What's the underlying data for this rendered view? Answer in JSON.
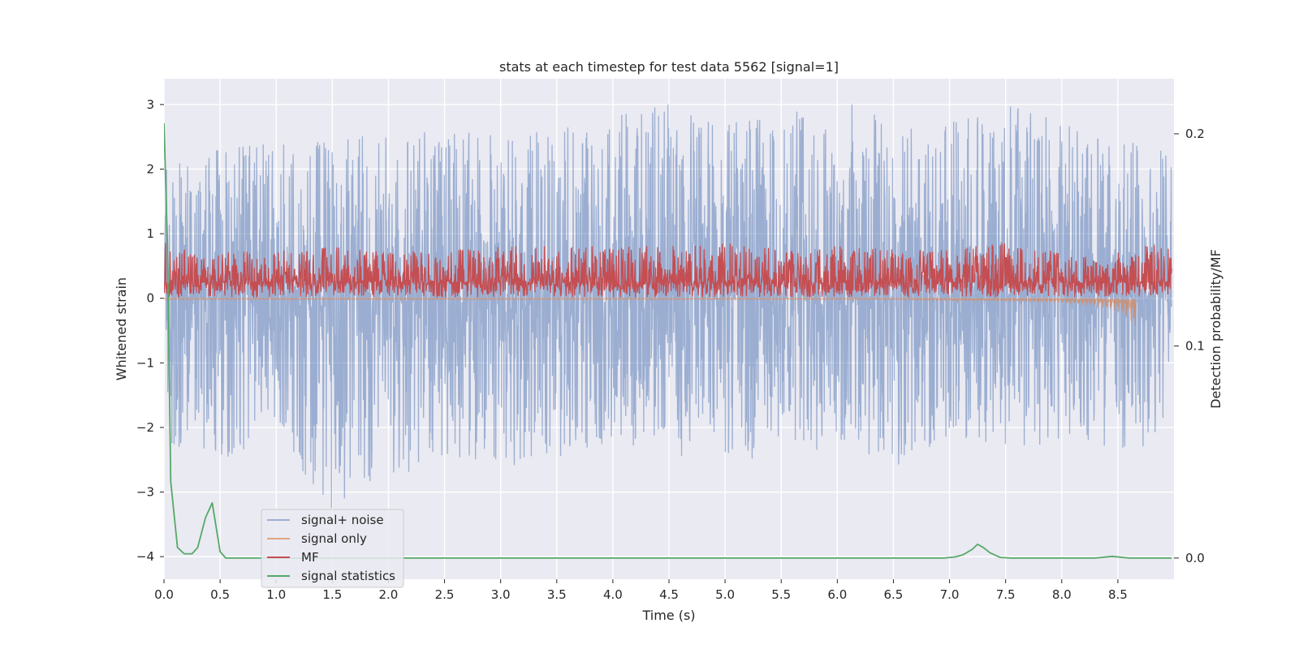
{
  "chart_data": {
    "type": "line",
    "title": "stats at each timestep for test data 5562 [signal=1]",
    "xlabel": "Time (s)",
    "ylabel": "Whitened strain",
    "y2label": "Detection probability/MF",
    "xlim": [
      0.0,
      9.0
    ],
    "ylim": [
      -4.35,
      3.4
    ],
    "y2lim": [
      -0.01,
      0.226
    ],
    "xticks": [
      0.0,
      0.5,
      1.0,
      1.5,
      2.0,
      2.5,
      3.0,
      3.5,
      4.0,
      4.5,
      5.0,
      5.5,
      6.0,
      6.5,
      7.0,
      7.5,
      8.0,
      8.5
    ],
    "xtick_labels": [
      "0.0",
      "0.5",
      "1.0",
      "1.5",
      "2.0",
      "2.5",
      "3.0",
      "3.5",
      "4.0",
      "4.5",
      "5.0",
      "5.5",
      "6.0",
      "6.5",
      "7.0",
      "7.5",
      "8.0",
      "8.5"
    ],
    "yticks": [
      -4,
      -3,
      -2,
      -1,
      0,
      1,
      2,
      3
    ],
    "ytick_labels": [
      "−4",
      "−3",
      "−2",
      "−1",
      "0",
      "1",
      "2",
      "3"
    ],
    "y2ticks": [
      0.0,
      0.1,
      0.2
    ],
    "y2tick_labels": [
      "0.0",
      "0.1",
      "0.2"
    ],
    "grid": true,
    "legend_position": "lower-left",
    "series": [
      {
        "name": "signal+ noise",
        "color": "#4c72b0",
        "kind": "noise-band",
        "axis": "left",
        "envelope_x": [
          0.0,
          0.5,
          1.0,
          1.5,
          2.0,
          2.5,
          3.0,
          3.5,
          4.0,
          4.5,
          5.0,
          5.5,
          6.0,
          6.5,
          7.0,
          7.5,
          8.0,
          8.5,
          8.98
        ],
        "envelope_max": [
          2.0,
          2.3,
          2.4,
          2.5,
          2.5,
          2.6,
          2.5,
          2.6,
          2.8,
          3.0,
          2.7,
          2.8,
          3.1,
          2.7,
          2.7,
          3.05,
          2.7,
          2.5,
          2.3
        ],
        "envelope_min": [
          -2.4,
          -2.5,
          -2.1,
          -3.3,
          -2.9,
          -2.4,
          -2.6,
          -2.5,
          -2.2,
          -2.4,
          -2.55,
          -2.4,
          -2.3,
          -2.65,
          -2.1,
          -2.3,
          -2.3,
          -2.3,
          -2.4
        ],
        "center": 0.0
      },
      {
        "name": "signal only",
        "color": "#dd8452",
        "kind": "chirp",
        "axis": "left",
        "x": [
          0.0,
          6.5,
          7.0,
          7.5,
          8.0,
          8.3,
          8.5,
          8.6,
          8.65,
          8.66
        ],
        "amplitude": [
          0.02,
          0.02,
          0.04,
          0.05,
          0.07,
          0.12,
          0.2,
          0.3,
          0.45,
          0.45
        ]
      },
      {
        "name": "MF",
        "color": "#c44e52",
        "kind": "noise-band",
        "axis": "left",
        "envelope_x": [
          0.0,
          0.5,
          1.0,
          1.5,
          2.0,
          2.5,
          3.0,
          3.5,
          4.0,
          4.5,
          5.0,
          5.5,
          6.0,
          6.5,
          7.0,
          7.5,
          8.0,
          8.5,
          8.98
        ],
        "envelope_max": [
          0.9,
          0.7,
          0.75,
          0.8,
          0.7,
          0.75,
          0.8,
          0.8,
          0.8,
          0.8,
          0.85,
          0.75,
          0.8,
          0.75,
          0.75,
          0.85,
          0.7,
          0.7,
          0.9
        ],
        "envelope_min": [
          0.0,
          0.02,
          0.02,
          0.02,
          0.02,
          0.02,
          0.02,
          0.02,
          0.02,
          0.02,
          0.02,
          0.02,
          0.02,
          0.02,
          0.02,
          0.02,
          0.02,
          0.02,
          0.05
        ],
        "center": 0.25
      },
      {
        "name": "signal statistics",
        "color": "#55a868",
        "kind": "line",
        "axis": "right",
        "x": [
          0.0,
          0.03,
          0.06,
          0.12,
          0.18,
          0.25,
          0.3,
          0.37,
          0.43,
          0.5,
          0.55,
          1.0,
          2.0,
          3.0,
          4.0,
          5.0,
          6.0,
          6.6,
          6.95,
          7.05,
          7.12,
          7.2,
          7.25,
          7.3,
          7.36,
          7.45,
          7.55,
          7.9,
          8.1,
          8.3,
          8.45,
          8.6,
          8.98
        ],
        "y": [
          0.205,
          0.15,
          0.036,
          0.005,
          0.002,
          0.002,
          0.005,
          0.019,
          0.026,
          0.003,
          0.0,
          0.0,
          0.0,
          0.0,
          0.0,
          0.0,
          0.0,
          0.0,
          0.0,
          0.0005,
          0.0015,
          0.004,
          0.0065,
          0.005,
          0.0025,
          0.0003,
          0.0,
          0.0,
          0.0,
          0.0,
          0.0008,
          0.0,
          0.0
        ]
      }
    ]
  }
}
